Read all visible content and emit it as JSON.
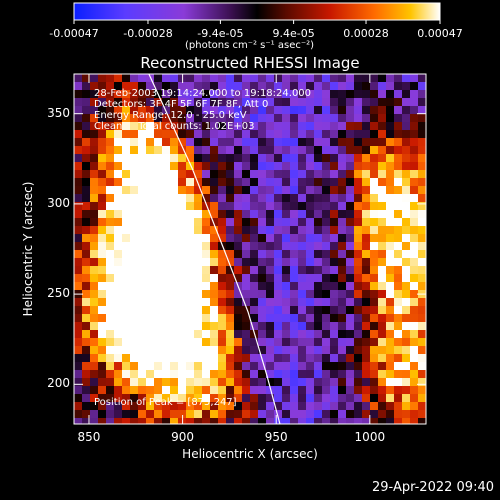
{
  "chart_data": {
    "type": "heatmap",
    "title": "Reconstructed RHESSI Image",
    "xlabel": "Heliocentric X (arcsec)",
    "ylabel": "Heliocentric Y (arcsec)",
    "xlim": [
      842,
      1030
    ],
    "ylim": [
      178,
      372
    ],
    "x_ticks": [
      850,
      900,
      950,
      1000
    ],
    "y_ticks": [
      200,
      250,
      300,
      350
    ],
    "colorbar": {
      "range": [
        -0.00047,
        0.00047
      ],
      "ticks": [
        -0.00047,
        -0.00028,
        -9.4e-05,
        9.4e-05,
        0.00028,
        0.00047
      ],
      "tick_labels": [
        "-0.00047",
        "-0.00028",
        "-9.4e-05",
        "9.4e-05",
        "0.00028",
        "0.00047"
      ],
      "units_label": "(photons cm⁻² s⁻¹ asec⁻²)"
    },
    "annotations": [
      "28-Feb-2003 19:14:24.000 to 19:18:24.000",
      "Detectors: 3F 4F 5F 6F 7F 8F, Att 0",
      "Energy Range: 12.0 - 25.0 keV",
      "Clean     Total counts: 1.02E+03"
    ],
    "peak_label": "Position of Peak = [875,247]",
    "limb_curve_xy": [
      [
        882,
        372
      ],
      [
        905,
        320
      ],
      [
        922,
        275
      ],
      [
        935,
        240
      ],
      [
        945,
        205
      ],
      [
        952,
        178
      ]
    ],
    "bright_regions": [
      {
        "x": 875,
        "y": 247,
        "intensity": 0.00047
      },
      {
        "x": 880,
        "y": 320,
        "intensity": 0.00035
      },
      {
        "x": 905,
        "y": 280,
        "intensity": 0.00028
      },
      {
        "x": 905,
        "y": 210,
        "intensity": 0.0003
      },
      {
        "x": 1010,
        "y": 310,
        "intensity": 0.00035
      },
      {
        "x": 1020,
        "y": 265,
        "intensity": 0.0003
      },
      {
        "x": 1020,
        "y": 205,
        "intensity": 0.00035
      }
    ]
  },
  "footer": {
    "timestamp": "29-Apr-2022 09:40"
  }
}
